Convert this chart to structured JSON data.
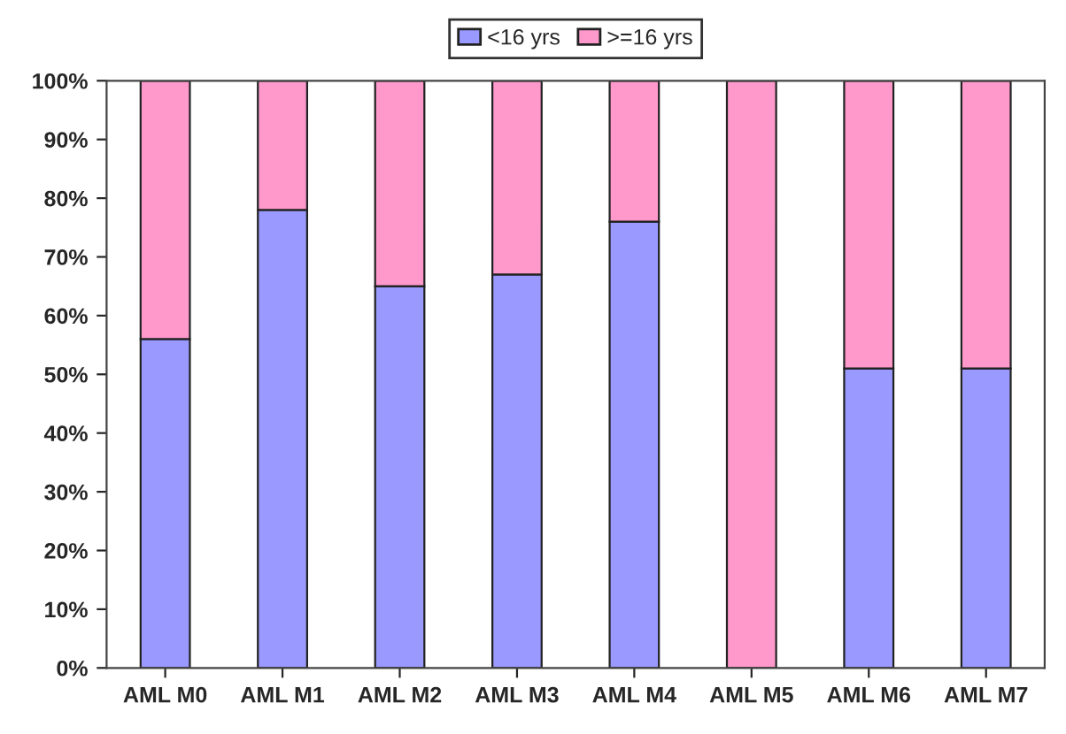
{
  "chart_data": {
    "type": "bar",
    "stacked": true,
    "categories": [
      "AML M0",
      "AML M1",
      "AML M2",
      "AML M3",
      "AML M4",
      "AML M5",
      "AML M6",
      "AML M7"
    ],
    "series": [
      {
        "name": "<16 yrs",
        "color": "#9999ff",
        "values": [
          56,
          78,
          65,
          67,
          76,
          0,
          51,
          51
        ]
      },
      {
        "name": ">=16 yrs",
        "color": "#ff99cc",
        "values": [
          44,
          22,
          35,
          33,
          24,
          100,
          49,
          49
        ]
      }
    ],
    "ylim": [
      0,
      100
    ],
    "yticks": [
      {
        "value": 0,
        "label": "0%"
      },
      {
        "value": 10,
        "label": "10%"
      },
      {
        "value": 20,
        "label": "20%"
      },
      {
        "value": 30,
        "label": "30%"
      },
      {
        "value": 40,
        "label": "40%"
      },
      {
        "value": 50,
        "label": "50%"
      },
      {
        "value": 60,
        "label": "60%"
      },
      {
        "value": 70,
        "label": "70%"
      },
      {
        "value": 80,
        "label": "80%"
      },
      {
        "value": 90,
        "label": "90%"
      },
      {
        "value": 100,
        "label": "100%"
      }
    ],
    "grid": false,
    "legend": "top"
  }
}
